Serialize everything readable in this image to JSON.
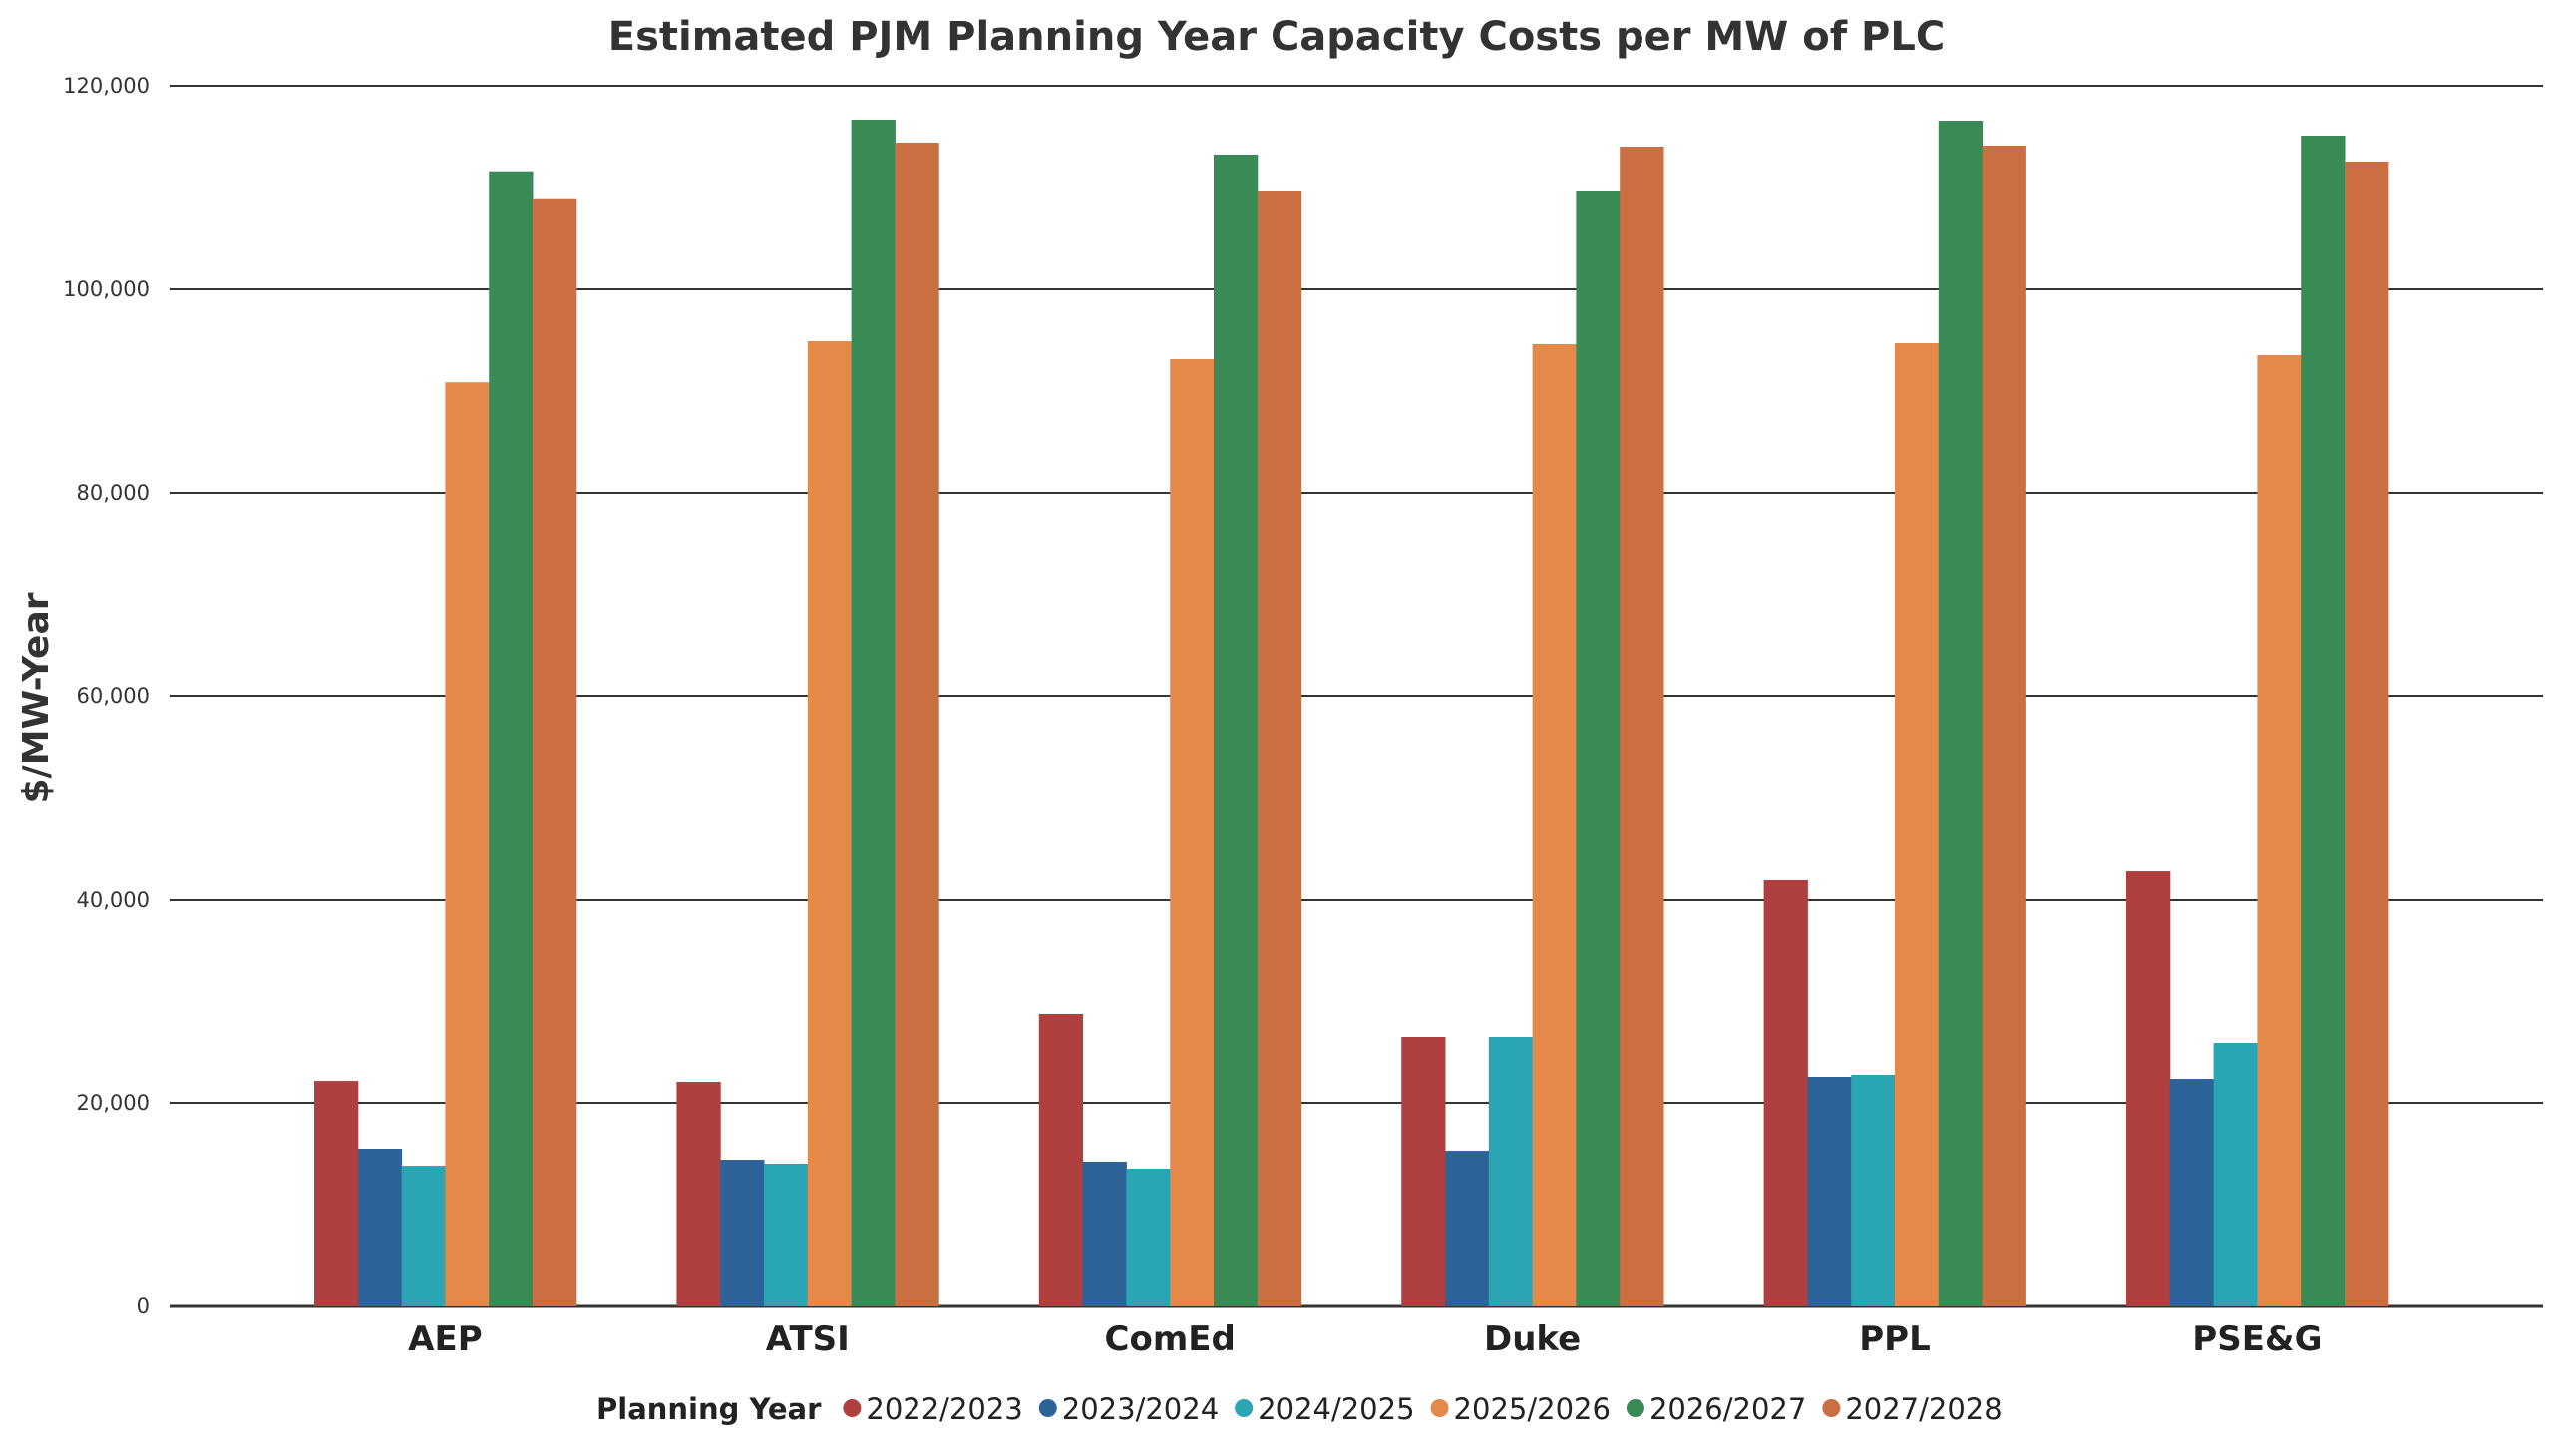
{
  "chart_data": {
    "type": "bar",
    "title": "Estimated PJM Planning Year Capacity Costs per MW of PLC",
    "xlabel": "",
    "ylabel": "$/MW-Year",
    "ylim": [
      0,
      120000
    ],
    "yticks": [
      0,
      20000,
      40000,
      60000,
      80000,
      100000,
      120000
    ],
    "ytick_labels": [
      "0",
      "20,000",
      "40,000",
      "60,000",
      "80,000",
      "100,000",
      "120,000"
    ],
    "grid": true,
    "legend_title": "Planning Year",
    "legend_position": "bottom",
    "categories": [
      "AEP",
      "ATSI",
      "ComEd",
      "Duke",
      "PPL",
      "PSE&G"
    ],
    "series": [
      {
        "name": "2022/2023",
        "color": "#b04040",
        "values": [
          22150,
          22060,
          28730,
          26470,
          41960,
          42840
        ]
      },
      {
        "name": "2023/2024",
        "color": "#2e6399",
        "values": [
          15490,
          14410,
          14220,
          15290,
          22550,
          22350
        ]
      },
      {
        "name": "2024/2025",
        "color": "#29a5b3",
        "values": [
          13820,
          14020,
          13530,
          26470,
          22750,
          25880
        ]
      },
      {
        "name": "2025/2026",
        "color": "#e5894a",
        "values": [
          90860,
          94900,
          93140,
          94610,
          94710,
          93530
        ]
      },
      {
        "name": "2026/2027",
        "color": "#3a8a56",
        "values": [
          111600,
          116670,
          113240,
          109610,
          116570,
          115100
        ]
      },
      {
        "name": "2027/2028",
        "color": "#c96f42",
        "values": [
          108850,
          114410,
          109610,
          114020,
          114120,
          112550
        ]
      }
    ]
  }
}
